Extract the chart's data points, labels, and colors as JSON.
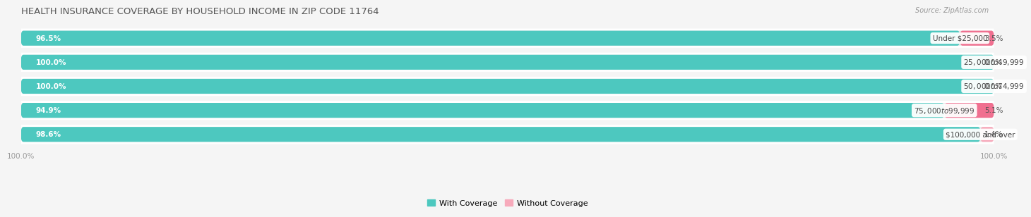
{
  "title": "HEALTH INSURANCE COVERAGE BY HOUSEHOLD INCOME IN ZIP CODE 11764",
  "source": "Source: ZipAtlas.com",
  "categories": [
    "Under $25,000",
    "$25,000 to $49,999",
    "$50,000 to $74,999",
    "$75,000 to $99,999",
    "$100,000 and over"
  ],
  "with_coverage": [
    96.5,
    100.0,
    100.0,
    94.9,
    98.6
  ],
  "without_coverage": [
    3.5,
    0.0,
    0.0,
    5.1,
    1.4
  ],
  "color_with": "#4DC8BF",
  "color_without": "#F07090",
  "color_without_light": "#F7AABB",
  "bar_bg": "#E8E8E8",
  "background": "#F5F5F5",
  "row_bg": "#FFFFFF",
  "title_fontsize": 9.5,
  "axis_label_fontsize": 7.5,
  "bar_label_fontsize": 7.5,
  "category_fontsize": 7.5,
  "legend_fontsize": 8
}
